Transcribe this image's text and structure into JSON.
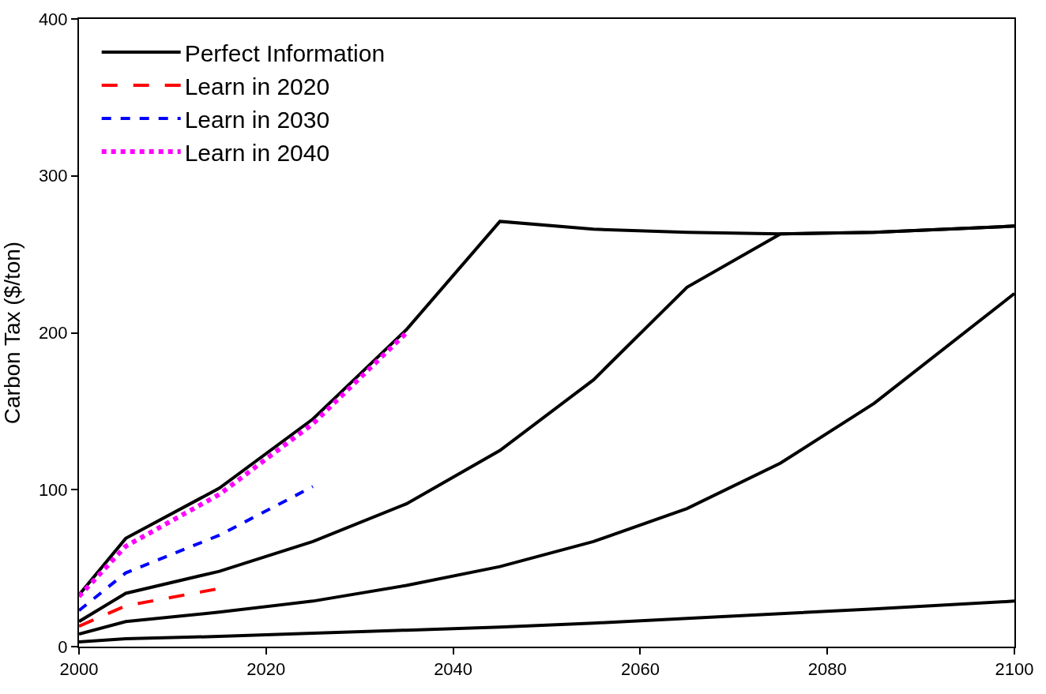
{
  "chart_data": {
    "type": "line",
    "ylabel": "Carbon Tax ($/ton)",
    "x": [
      2000,
      2005,
      2015,
      2025,
      2035,
      2045,
      2055,
      2065,
      2075,
      2085,
      2100
    ],
    "series": [
      {
        "name": "Perfect Information",
        "color": "#000000",
        "line_style": "solid",
        "values": [
          33,
          69,
          101,
          145,
          202,
          271,
          266,
          264,
          263,
          264,
          268
        ]
      },
      {
        "color": "#000000",
        "line_style": "solid",
        "values": [
          16,
          34,
          48,
          67,
          91,
          125,
          170,
          229,
          263,
          264,
          268
        ]
      },
      {
        "color": "#000000",
        "line_style": "solid",
        "values": [
          8,
          16,
          22,
          29,
          39,
          51,
          67,
          88,
          117,
          155,
          225
        ]
      },
      {
        "color": "#000000",
        "line_style": "solid",
        "values": [
          3,
          5,
          6.5,
          8.5,
          10.5,
          12.5,
          15,
          18,
          21,
          24,
          29
        ]
      },
      {
        "name": "Learn in 2020",
        "color": "#ff0000",
        "line_style": "dashed",
        "x": [
          2000,
          2005,
          2015
        ],
        "values": [
          13,
          26,
          37
        ]
      },
      {
        "name": "Learn in 2030",
        "color": "#0000ff",
        "line_style": "dashed",
        "x": [
          2000,
          2005,
          2015,
          2025
        ],
        "values": [
          23,
          47,
          71,
          102
        ]
      },
      {
        "name": "Learn in 2040",
        "color": "#ff00ff",
        "line_style": "dotted",
        "x": [
          2000,
          2005,
          2015,
          2025,
          2035
        ],
        "values": [
          32,
          64,
          97,
          142,
          200
        ]
      }
    ],
    "xlim": [
      2000,
      2100
    ],
    "xticks": [
      2000,
      2020,
      2040,
      2060,
      2080,
      2100
    ],
    "ylim": [
      0,
      400
    ],
    "yticks": [
      0,
      100,
      200,
      300,
      400
    ],
    "legend": "top left"
  }
}
